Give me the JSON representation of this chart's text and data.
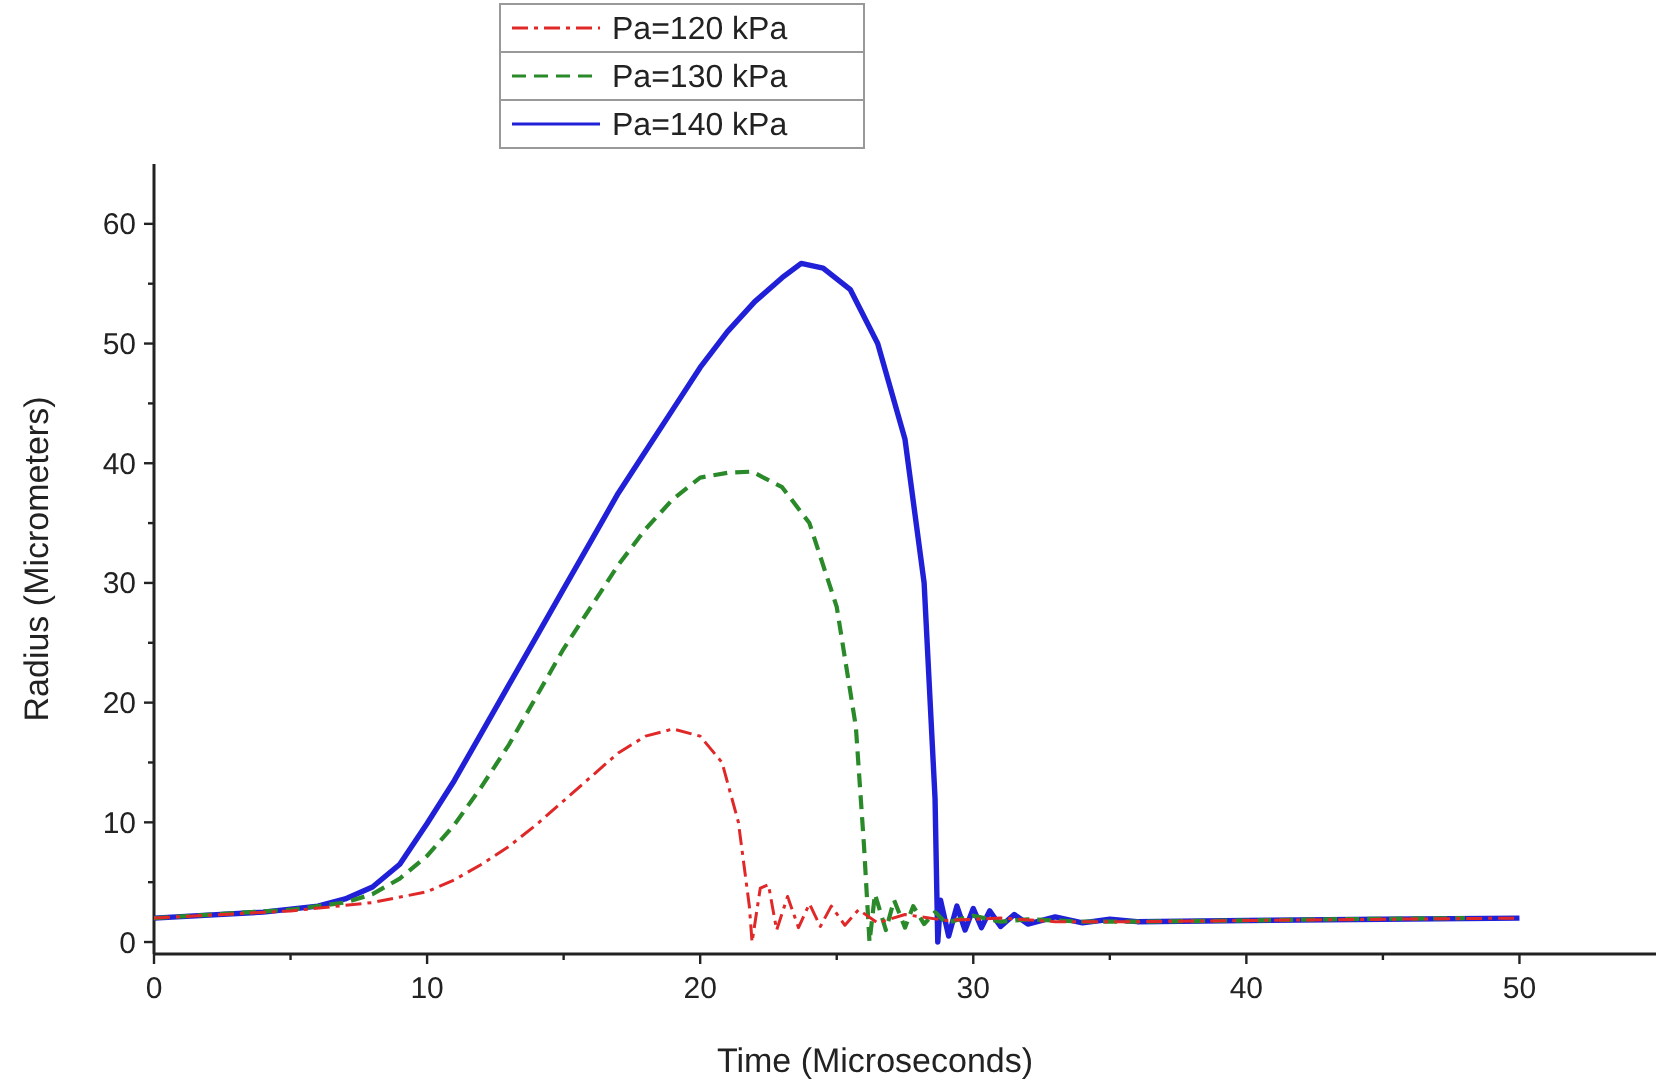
{
  "chart_data": {
    "type": "line",
    "xlabel": "Time (Microseconds)",
    "ylabel": "Radius (Micrometers)",
    "xlim": [
      0,
      55
    ],
    "ylim": [
      -1,
      65
    ],
    "xticks": [
      0,
      {
        "value": 5,
        "label": null
      },
      10,
      {
        "value": 15,
        "label": null
      },
      20,
      {
        "value": 25,
        "label": null
      },
      30,
      {
        "value": 35,
        "label": null
      },
      40,
      {
        "value": 45,
        "label": null
      },
      50
    ],
    "yticks": [
      0,
      {
        "value": 5,
        "label": null
      },
      10,
      {
        "value": 15,
        "label": null
      },
      20,
      {
        "value": 25,
        "label": null
      },
      30,
      {
        "value": 35,
        "label": null
      },
      40,
      {
        "value": 45,
        "label": null
      },
      50,
      {
        "value": 55,
        "label": null
      },
      60
    ],
    "grid": false,
    "legend": "top",
    "marker": "none",
    "series": [
      {
        "name": "Pa=120 kPa",
        "color": "#e02828",
        "line_style": "dashdot",
        "x": [
          0,
          5,
          8,
          10,
          11,
          12,
          13,
          14,
          15,
          16,
          17,
          18,
          19,
          20,
          20.8,
          21.4,
          21.8,
          21.9,
          22.2,
          22.5,
          22.8,
          23.2,
          23.6,
          24,
          24.4,
          24.8,
          25.3,
          25.8,
          26.5,
          27.5,
          29,
          31,
          33,
          36,
          40,
          45,
          50
        ],
        "values": [
          2,
          2.6,
          3.3,
          4.2,
          5.2,
          6.5,
          8,
          9.8,
          11.8,
          13.8,
          15.8,
          17.2,
          17.8,
          17.2,
          15,
          10,
          3,
          0,
          4.5,
          4.8,
          1,
          3.8,
          1.2,
          3.2,
          1.3,
          3,
          1.4,
          2.7,
          1.6,
          2.3,
          1.8,
          2,
          1.7,
          1.7,
          1.8,
          1.9,
          2
        ]
      },
      {
        "name": "Pa=130 kPa",
        "color": "#2a8a2a",
        "line_style": "dashed",
        "x": [
          0,
          5,
          7,
          8,
          9,
          10,
          11,
          12,
          13,
          14,
          15,
          16,
          17,
          18,
          19,
          20,
          21,
          21.9,
          23,
          24,
          25,
          25.7,
          26,
          26.2,
          26.4,
          26.8,
          27.1,
          27.5,
          27.8,
          28.2,
          28.6,
          29,
          30,
          31,
          32,
          34,
          36,
          40,
          43,
          48
        ],
        "values": [
          2,
          2.7,
          3.3,
          4,
          5.3,
          7.2,
          9.8,
          13,
          16.5,
          20.5,
          24.5,
          28,
          31.5,
          34.5,
          37,
          38.8,
          39.2,
          39.3,
          38,
          35,
          28,
          18,
          8,
          0,
          4,
          1,
          3.5,
          1.2,
          3,
          1.5,
          2.5,
          1.6,
          2.2,
          1.7,
          1.9,
          1.7,
          1.7,
          1.8,
          1.9,
          2
        ]
      },
      {
        "name": "Pa=140 kPa",
        "color": "#2020d8",
        "line_style": "solid",
        "x": [
          0,
          4,
          6,
          7,
          8,
          9,
          10,
          11,
          12,
          13,
          14,
          15,
          16,
          17,
          18,
          19,
          20,
          21,
          22,
          23,
          23.7,
          24.5,
          25.5,
          26.5,
          27.5,
          28.2,
          28.6,
          28.7,
          28.8,
          29.1,
          29.4,
          29.7,
          30,
          30.3,
          30.6,
          31,
          31.5,
          32,
          33,
          34,
          35,
          36,
          40,
          45,
          50
        ],
        "values": [
          2,
          2.5,
          3,
          3.6,
          4.6,
          6.5,
          9.9,
          13.5,
          17.5,
          21.5,
          25.5,
          29.5,
          33.5,
          37.5,
          41,
          44.5,
          48,
          51,
          53.5,
          55.5,
          56.7,
          56.3,
          54.5,
          50,
          42,
          30,
          12,
          0,
          3.5,
          0.5,
          3,
          1,
          2.8,
          1.2,
          2.6,
          1.3,
          2.3,
          1.5,
          2.1,
          1.6,
          1.9,
          1.7,
          1.8,
          1.9,
          2
        ]
      }
    ]
  }
}
